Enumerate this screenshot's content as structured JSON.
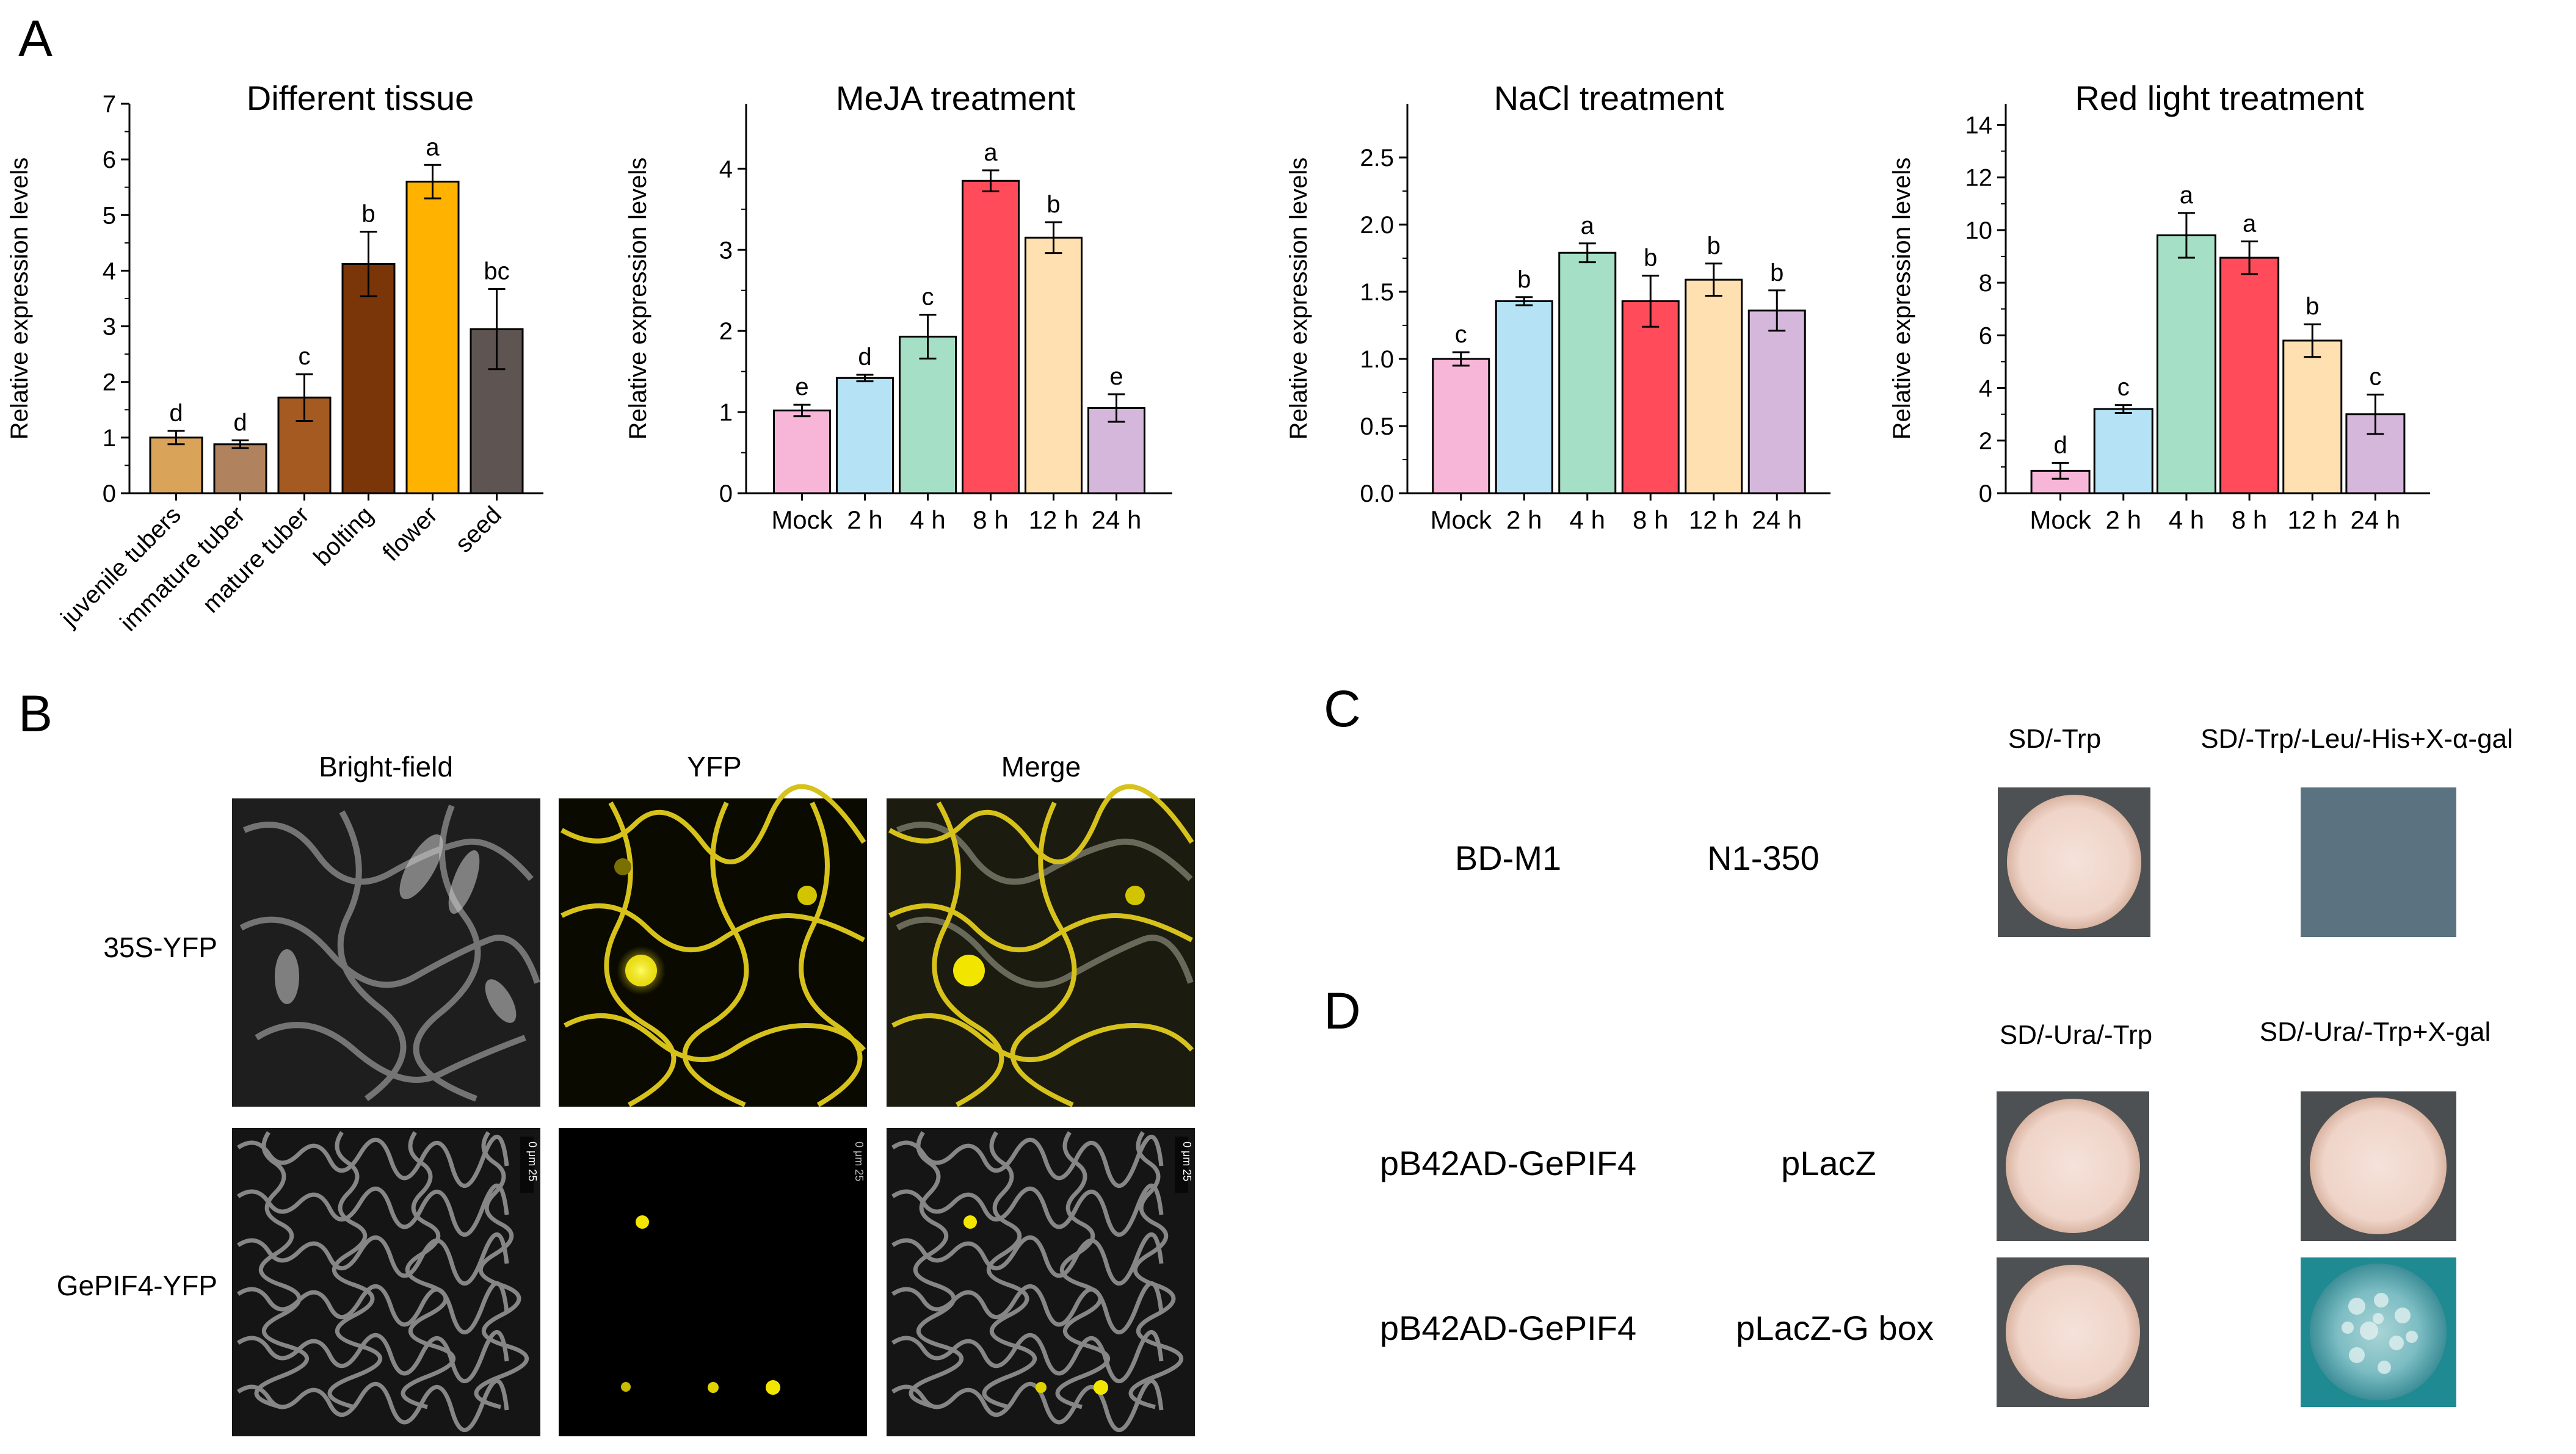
{
  "panel_labels": {
    "a": "A",
    "b": "B",
    "c": "C",
    "d": "D"
  },
  "colors": {
    "tissue": [
      "#D9A35A",
      "#B0835E",
      "#A55A22",
      "#7A3508",
      "#FFB300",
      "#5E5452"
    ],
    "treatment": [
      "#F7B6D8",
      "#B5E2F5",
      "#A5E0C6",
      "#FF4B5A",
      "#FFE0B0",
      "#D6B7DC"
    ]
  },
  "chart_data": [
    {
      "type": "bar",
      "title": "Different tissue",
      "ylabel": "Relative expression levels",
      "xlabel": "",
      "ylim": [
        0,
        7
      ],
      "yticks": [
        "0",
        "1",
        "2",
        "3",
        "4",
        "5",
        "6",
        "7"
      ],
      "ytick_values": [
        0,
        1,
        2,
        3,
        4,
        5,
        6,
        7
      ],
      "categories": [
        "juvenile tubers",
        "immature tuber",
        "mature tuber",
        "bolting",
        "flower",
        "seed"
      ],
      "values": [
        1.0,
        0.88,
        1.72,
        4.12,
        5.6,
        2.95
      ],
      "errors": [
        0.12,
        0.07,
        0.42,
        0.58,
        0.3,
        0.72
      ],
      "letters": [
        "d",
        "d",
        "c",
        "b",
        "a",
        "bc"
      ],
      "color_set": "tissue"
    },
    {
      "type": "bar",
      "title": "MeJA treatment",
      "ylabel": "Relative expression levels",
      "xlabel": "",
      "ylim": [
        0,
        4.8
      ],
      "yticks": [
        "0",
        "1",
        "2",
        "3",
        "4"
      ],
      "ytick_values": [
        0,
        1,
        2,
        3,
        4
      ],
      "categories": [
        "Mock",
        "2 h",
        "4 h",
        "8 h",
        "12 h",
        "24 h"
      ],
      "values": [
        1.02,
        1.42,
        1.93,
        3.85,
        3.15,
        1.05
      ],
      "errors": [
        0.07,
        0.04,
        0.27,
        0.13,
        0.19,
        0.17
      ],
      "letters": [
        "e",
        "d",
        "c",
        "a",
        "b",
        "e"
      ],
      "color_set": "treatment"
    },
    {
      "type": "bar",
      "title": "NaCl treatment",
      "ylabel": "Relative expression levels",
      "xlabel": "",
      "ylim": [
        0,
        2.9
      ],
      "yticks": [
        "0.0",
        "0.5",
        "1.0",
        "1.5",
        "2.0",
        "2.5"
      ],
      "ytick_values": [
        0,
        0.5,
        1.0,
        1.5,
        2.0,
        2.5
      ],
      "categories": [
        "Mock",
        "2 h",
        "4 h",
        "8 h",
        "12 h",
        "24 h"
      ],
      "values": [
        1.0,
        1.43,
        1.79,
        1.43,
        1.59,
        1.36
      ],
      "errors": [
        0.05,
        0.03,
        0.07,
        0.19,
        0.12,
        0.15
      ],
      "letters": [
        "c",
        "b",
        "a",
        "b",
        "b",
        "b"
      ],
      "color_set": "treatment"
    },
    {
      "type": "bar",
      "title": "Red light treatment",
      "ylabel": "Relative expression levels",
      "xlabel": "",
      "ylim": [
        0,
        14.8
      ],
      "yticks": [
        "0",
        "2",
        "4",
        "6",
        "8",
        "10",
        "12",
        "14"
      ],
      "ytick_values": [
        0,
        2,
        4,
        6,
        8,
        10,
        12,
        14
      ],
      "categories": [
        "Mock",
        "2 h",
        "4 h",
        "8 h",
        "12 h",
        "24 h"
      ],
      "values": [
        0.85,
        3.2,
        9.8,
        8.95,
        5.8,
        3.0
      ],
      "errors": [
        0.3,
        0.15,
        0.85,
        0.62,
        0.62,
        0.75
      ],
      "letters": [
        "d",
        "c",
        "a",
        "a",
        "b",
        "c"
      ],
      "color_set": "treatment"
    }
  ],
  "panel_b": {
    "columns": [
      "Bright-field",
      "YFP",
      "Merge"
    ],
    "rows": [
      "35S-YFP",
      "GePIF4-YFP"
    ],
    "scale_bar": "0 μm 25"
  },
  "panel_c": {
    "construct_bait": "BD-M1",
    "construct_prey": "N1-350",
    "col_1": "SD/-Trp",
    "col_2": "SD/-Trp/-Leu/-His+X-α-gal"
  },
  "panel_d": {
    "col_1": "SD/-Ura/-Trp",
    "col_2": "SD/-Ura/-Trp+X-gal",
    "rows": [
      {
        "effector": "pB42AD-GePIF4",
        "reporter": "pLacZ"
      },
      {
        "effector": "pB42AD-GePIF4",
        "reporter": "pLacZ-G box"
      }
    ]
  }
}
